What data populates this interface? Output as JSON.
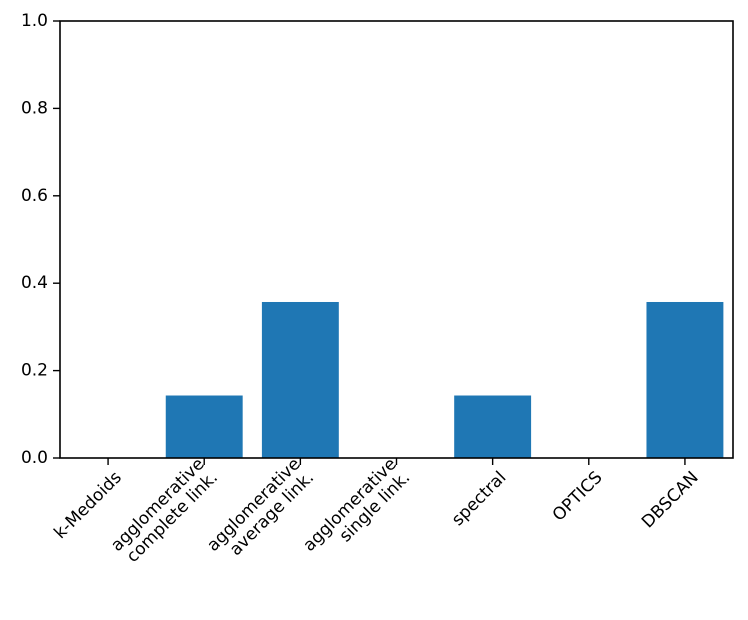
{
  "chart_data": {
    "type": "bar",
    "categories": [
      "k-Medoids",
      "agglomerative\ncomplete link.",
      "agglomerative\naverage link.",
      "agglomerative\nsingle link.",
      "spectral",
      "OPTICS",
      "DBSCAN"
    ],
    "values": [
      0.0,
      0.143,
      0.357,
      0.0,
      0.143,
      0.0,
      0.357
    ],
    "ylim": [
      0,
      1.0
    ],
    "yticks": [
      "0.0",
      "0.2",
      "0.4",
      "0.6",
      "0.8",
      "1.0"
    ],
    "xtick_rotation_deg": 45,
    "grid": false,
    "legend": "none",
    "bar_color": "#1f77b4"
  }
}
